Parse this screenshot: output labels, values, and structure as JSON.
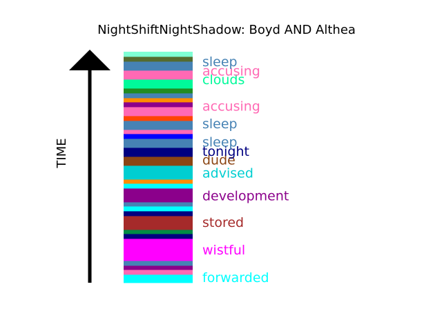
{
  "chart_data": {
    "type": "stacked-timeline",
    "title": "NightShiftNightShadow: Boyd AND Althea",
    "axis_label": "TIME",
    "time_direction": "up",
    "segments": [
      {
        "color": "#00ffff",
        "weight": 12
      },
      {
        "color": "#ff69b4",
        "weight": 7
      },
      {
        "color": "#8b008b",
        "weight": 6
      },
      {
        "color": "#4682b4",
        "weight": 7
      },
      {
        "color": "#ff00ff",
        "weight": 32
      },
      {
        "color": "#000080",
        "weight": 7
      },
      {
        "color": "#008b45",
        "weight": 6
      },
      {
        "color": "#a52a2a",
        "weight": 20
      },
      {
        "color": "#000080",
        "weight": 7
      },
      {
        "color": "#00ffff",
        "weight": 7
      },
      {
        "color": "#4682b4",
        "weight": 6
      },
      {
        "color": "#8b008b",
        "weight": 20
      },
      {
        "color": "#00ffff",
        "weight": 7
      },
      {
        "color": "#ff8c00",
        "weight": 6
      },
      {
        "color": "#00ced1",
        "weight": 20
      },
      {
        "color": "#8b4513",
        "weight": 13
      },
      {
        "color": "#000080",
        "weight": 13
      },
      {
        "color": "#4682b4",
        "weight": 13
      },
      {
        "color": "#0000ff",
        "weight": 7
      },
      {
        "color": "#ff69b4",
        "weight": 6
      },
      {
        "color": "#4682b4",
        "weight": 13
      },
      {
        "color": "#ff4500",
        "weight": 7
      },
      {
        "color": "#ff69b4",
        "weight": 13
      },
      {
        "color": "#8b008b",
        "weight": 7
      },
      {
        "color": "#ff8c00",
        "weight": 6
      },
      {
        "color": "#4682b4",
        "weight": 7
      },
      {
        "color": "#228b22",
        "weight": 7
      },
      {
        "color": "#00fa9a",
        "weight": 13
      },
      {
        "color": "#ff69b4",
        "weight": 13
      },
      {
        "color": "#4682b4",
        "weight": 13
      },
      {
        "color": "#556b2f",
        "weight": 7
      },
      {
        "color": "#7fffd4",
        "weight": 7
      }
    ],
    "labels": [
      {
        "text": "forwarded",
        "color": "#00ffff",
        "pos": 0.024
      },
      {
        "text": "wistful",
        "color": "#ff00ff",
        "pos": 0.143
      },
      {
        "text": "stored",
        "color": "#a52a2a",
        "pos": 0.262
      },
      {
        "text": "development",
        "color": "#8b008b",
        "pos": 0.378
      },
      {
        "text": "advised",
        "color": "#00ced1",
        "pos": 0.476
      },
      {
        "text": "dude",
        "color": "#8b4513",
        "pos": 0.533
      },
      {
        "text": "tonight",
        "color": "#000080",
        "pos": 0.57
      },
      {
        "text": "sleep",
        "color": "#4682b4",
        "pos": 0.61
      },
      {
        "text": "sleep",
        "color": "#4682b4",
        "pos": 0.69
      },
      {
        "text": "accusing",
        "color": "#ff69b4",
        "pos": 0.765
      },
      {
        "text": "clouds",
        "color": "#00fa9a",
        "pos": 0.88
      },
      {
        "text": "accusing",
        "color": "#ff69b4",
        "pos": 0.918
      },
      {
        "text": "sleep",
        "color": "#4682b4",
        "pos": 0.958
      }
    ]
  }
}
